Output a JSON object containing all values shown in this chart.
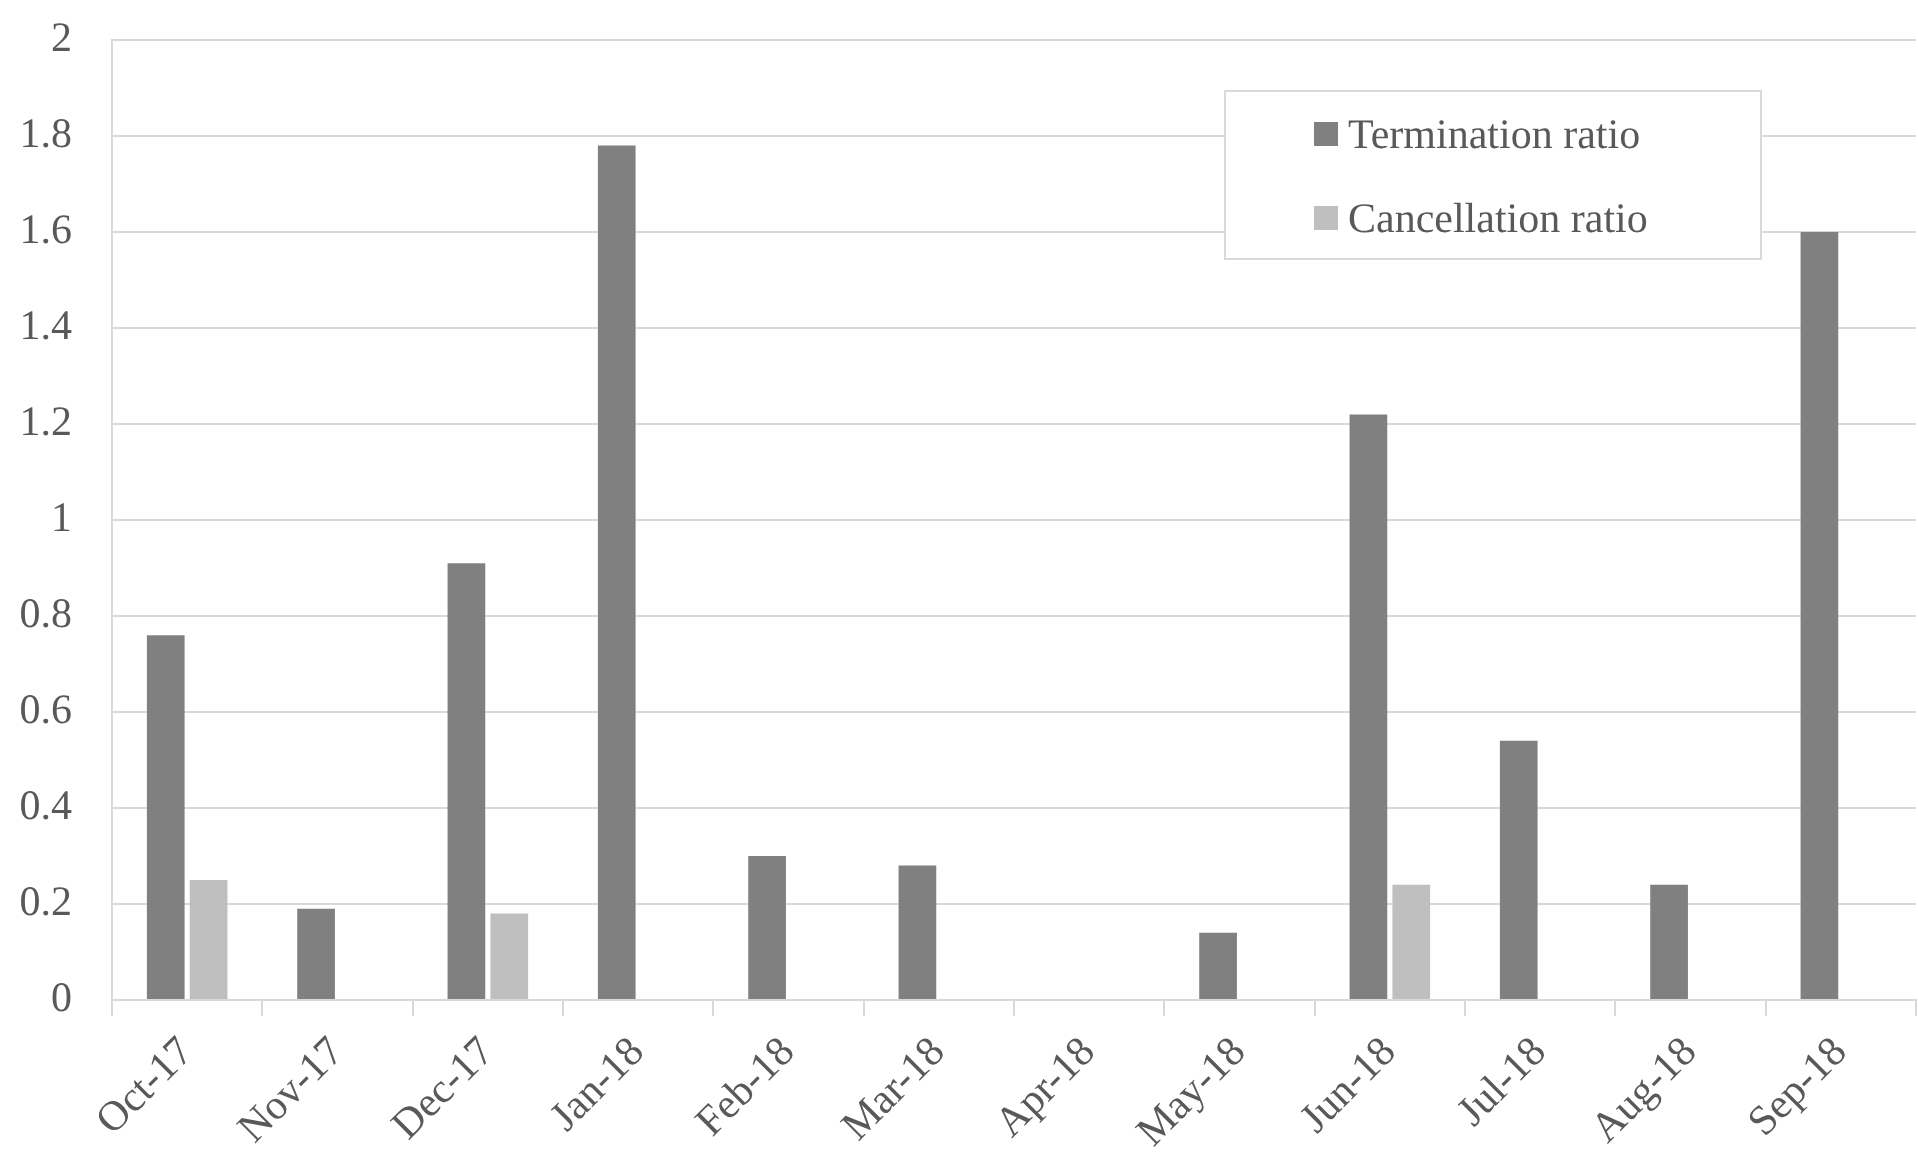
{
  "chart_data": {
    "type": "bar",
    "categories": [
      "Oct-17",
      "Nov-17",
      "Dec-17",
      "Jan-18",
      "Feb-18",
      "Mar-18",
      "Apr-18",
      "May-18",
      "Jun-18",
      "Jul-18",
      "Aug-18",
      "Sep-18"
    ],
    "series": [
      {
        "name": "Termination ratio",
        "color": "#808080",
        "values": [
          0.76,
          0.19,
          0.91,
          1.78,
          0.3,
          0.28,
          0,
          0.14,
          1.22,
          0.54,
          0.24,
          1.6
        ]
      },
      {
        "name": "Cancellation ratio",
        "color": "#bfbfbf",
        "values": [
          0.25,
          0,
          0.18,
          0,
          0,
          0,
          0,
          0,
          0.24,
          0,
          0,
          0
        ]
      }
    ],
    "ylim": [
      0,
      2
    ],
    "yticks": [
      0,
      0.2,
      0.4,
      0.6,
      0.8,
      1,
      1.2,
      1.4,
      1.6,
      1.8,
      2
    ],
    "grid": "y",
    "legend": "top right"
  }
}
